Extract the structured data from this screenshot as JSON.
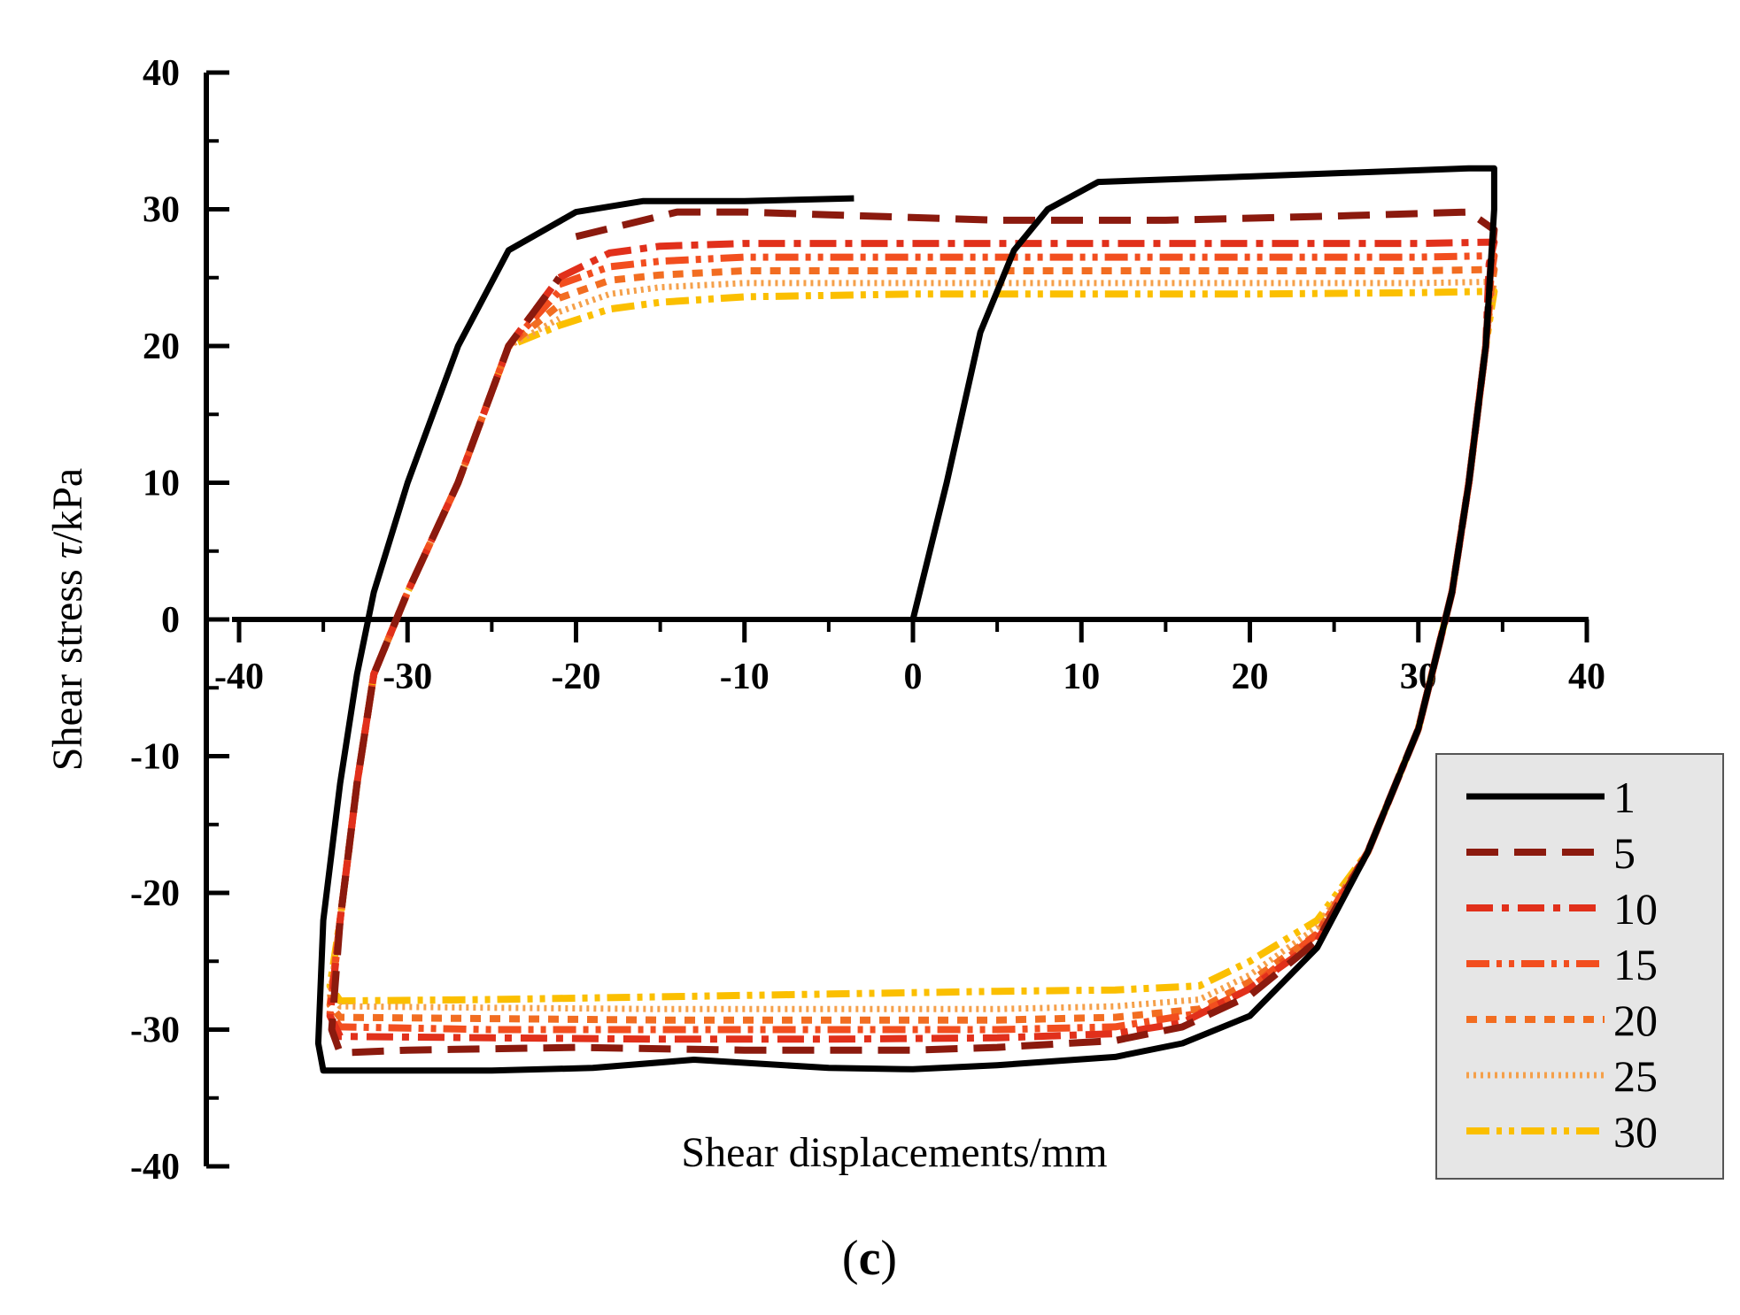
{
  "chart_data": {
    "type": "line",
    "title": "",
    "panel_label": {
      "open": "(",
      "letter": "c",
      "close": ")"
    },
    "xlabel": "Shear displacements/mm",
    "ylabel": "Shear stress τ/kPa",
    "ylabel_parts": {
      "prefix": "Shear stress ",
      "symbol": "τ",
      "suffix": "/kPa"
    },
    "xlim": [
      -40,
      40
    ],
    "ylim": [
      -40,
      40
    ],
    "x_ticks": [
      -40,
      -30,
      -20,
      -10,
      0,
      10,
      20,
      30,
      40
    ],
    "x_tick_labels": [
      "-40",
      "-30",
      "-20",
      "-10",
      "0",
      "10",
      "20",
      "30",
      "40"
    ],
    "y_ticks": [
      -40,
      -30,
      -20,
      -10,
      0,
      10,
      20,
      30,
      40
    ],
    "y_tick_labels": [
      "-40",
      "-30",
      "-20",
      "-10",
      "0",
      "10",
      "20",
      "30",
      "40"
    ],
    "legend": {
      "placement": "bottom-right",
      "background": "#e6e6e6"
    },
    "series": [
      {
        "name": "1",
        "color": "#000000",
        "dash": "solid",
        "x": [
          0,
          2,
          4,
          6,
          8,
          11,
          20,
          33,
          34.5,
          34.5,
          34,
          33,
          32,
          30,
          27,
          24,
          20,
          16,
          12,
          5,
          0,
          -5,
          -13,
          -19,
          -25,
          -35,
          -35.3,
          -35,
          -34,
          -33,
          -32,
          -30,
          -27,
          -24,
          -20,
          -16,
          -13,
          -10,
          -3.5
        ],
        "y": [
          0,
          10,
          21,
          27,
          30,
          32,
          32.4,
          33,
          33,
          30,
          20,
          10,
          2,
          -8,
          -17,
          -24,
          -29,
          -31,
          -32,
          -32.6,
          -32.9,
          -32.8,
          -32.2,
          -32.8,
          -33,
          -33,
          -31,
          -22,
          -12,
          -4,
          2,
          10,
          20,
          27,
          29.8,
          30.6,
          30.6,
          30.6,
          30.8
        ]
      },
      {
        "name": "5",
        "color": "#8b1a0e",
        "dash": "long-dash",
        "x": [
          -20,
          -14,
          -10,
          -5,
          5,
          15,
          25,
          33,
          34.5,
          34.3,
          34,
          33,
          32,
          30,
          27,
          24,
          20,
          16,
          12,
          5,
          0,
          -10,
          -20,
          -30,
          -34,
          -34.5,
          -34,
          -33,
          -32,
          -30,
          -27,
          -24,
          -21
        ],
        "y": [
          28,
          29.8,
          29.8,
          29.6,
          29.2,
          29.2,
          29.5,
          29.8,
          28.5,
          26,
          20,
          10,
          2,
          -8,
          -17,
          -23.5,
          -27.5,
          -29.8,
          -30.8,
          -31.3,
          -31.5,
          -31.5,
          -31.3,
          -31.5,
          -31.7,
          -30,
          -22,
          -12,
          -4,
          2,
          10,
          20,
          25
        ]
      },
      {
        "name": "10",
        "color": "#e1301b",
        "dash": "dash-dot",
        "x": [
          -21,
          -18,
          -15,
          -10,
          0,
          10,
          20,
          30,
          34.5,
          34.2,
          34,
          33,
          32,
          30,
          27,
          24,
          20,
          16,
          12,
          5,
          -5,
          -15,
          -25,
          -34,
          -34.6,
          -34,
          -33,
          -32,
          -30,
          -27,
          -24,
          -21
        ],
        "y": [
          25,
          26.8,
          27.3,
          27.5,
          27.5,
          27.5,
          27.5,
          27.5,
          27.6,
          26,
          20,
          10,
          2,
          -8,
          -17,
          -23.5,
          -27,
          -29.5,
          -30.3,
          -30.6,
          -30.7,
          -30.7,
          -30.6,
          -30.5,
          -29,
          -22,
          -12,
          -4,
          2,
          10,
          20,
          25
        ]
      },
      {
        "name": "15",
        "color": "#f24e1f",
        "dash": "dash-dot-dot",
        "x": [
          -21,
          -18,
          -15,
          -10,
          0,
          10,
          20,
          30,
          34.5,
          34.3,
          34,
          33,
          32,
          30,
          27,
          24,
          20,
          17,
          12,
          5,
          -5,
          -15,
          -25,
          -34,
          -34.6,
          -34,
          -33,
          -32,
          -30,
          -27,
          -24,
          -21
        ],
        "y": [
          24.5,
          25.8,
          26.2,
          26.5,
          26.5,
          26.5,
          26.5,
          26.5,
          26.6,
          25,
          20,
          10,
          2,
          -8,
          -17,
          -23,
          -27,
          -28.8,
          -29.8,
          -30,
          -30,
          -30,
          -30,
          -29.8,
          -28.8,
          -22,
          -12,
          -4,
          2,
          10,
          20,
          24
        ]
      },
      {
        "name": "20",
        "color": "#f26d21",
        "dash": "short-dash",
        "x": [
          -21,
          -18,
          -15,
          -10,
          0,
          10,
          20,
          30,
          34.5,
          34.3,
          34,
          33,
          32,
          30,
          27,
          24,
          20,
          17,
          12,
          5,
          -5,
          -15,
          -25,
          -34,
          -34.6,
          -34,
          -33,
          -32,
          -30,
          -27,
          -24,
          -21
        ],
        "y": [
          23.5,
          24.8,
          25.2,
          25.5,
          25.5,
          25.5,
          25.5,
          25.5,
          25.6,
          24,
          20,
          10,
          2,
          -8,
          -17,
          -23,
          -26.5,
          -28.5,
          -29.1,
          -29.3,
          -29.3,
          -29.3,
          -29.2,
          -29.1,
          -28.2,
          -22,
          -12,
          -4,
          2,
          10,
          20,
          23
        ]
      },
      {
        "name": "25",
        "color": "#f5a04a",
        "dash": "dotted",
        "x": [
          -21,
          -18,
          -15,
          -10,
          0,
          10,
          20,
          30,
          34.5,
          34.3,
          34,
          33,
          32,
          30,
          27,
          24,
          20,
          17,
          12,
          5,
          -5,
          -15,
          -25,
          -34,
          -34.6,
          -34,
          -33,
          -32,
          -30,
          -27,
          -24,
          -21
        ],
        "y": [
          22.5,
          23.8,
          24.3,
          24.6,
          24.6,
          24.6,
          24.6,
          24.6,
          24.7,
          23,
          20,
          10,
          2,
          -8,
          -17,
          -22.5,
          -26,
          -27.8,
          -28.3,
          -28.5,
          -28.5,
          -28.5,
          -28.4,
          -28.3,
          -27.5,
          -22,
          -12,
          -4,
          2,
          10,
          20,
          22
        ]
      },
      {
        "name": "30",
        "color": "#fbbf00",
        "dash": "dash-dot-dot",
        "x": [
          -21,
          -18,
          -15,
          -10,
          0,
          10,
          20,
          30,
          34.5,
          34.3,
          34,
          33,
          32,
          30,
          27,
          24,
          20,
          17,
          12,
          5,
          -5,
          -15,
          -25,
          -34,
          -34.6,
          -34,
          -33,
          -32,
          -30,
          -27,
          -24,
          -21
        ],
        "y": [
          21.5,
          22.7,
          23.2,
          23.6,
          23.8,
          23.8,
          23.8,
          23.9,
          24.0,
          22.5,
          20,
          10,
          2,
          -8,
          -17,
          -22,
          -25,
          -26.8,
          -27.1,
          -27.2,
          -27.4,
          -27.6,
          -27.8,
          -27.9,
          -26.8,
          -22,
          -12,
          -4,
          2,
          10,
          20,
          21.5
        ]
      }
    ]
  }
}
